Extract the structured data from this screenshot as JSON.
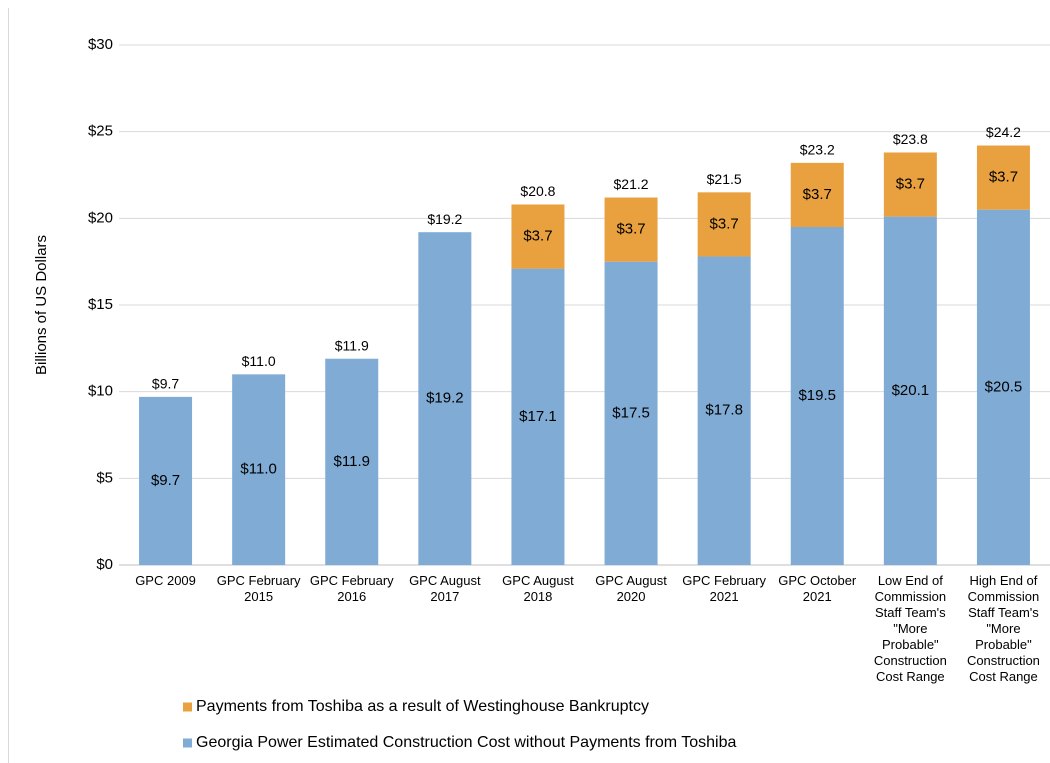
{
  "chart_data": {
    "type": "stacked_bar",
    "y_label": "Billions of US Dollars",
    "categories": [
      "GPC 2009",
      "GPC February 2015",
      "GPC February 2016",
      "GPC August 2017",
      "GPC August 2018",
      "GPC August 2020",
      "GPC February 2021",
      "GPC October 2021",
      "Low End of Commission Staff Team's \"More Probable\" Construction Cost Range",
      "High End of Commission Staff Team's \"More Probable\" Construction Cost Range"
    ],
    "series": [
      {
        "name": "Georgia Power Estimated Construction Cost without Payments from Toshiba",
        "color": "#7fabd5",
        "values": [
          9.7,
          11.0,
          11.9,
          19.2,
          17.1,
          17.5,
          17.8,
          19.5,
          20.1,
          20.5
        ],
        "value_labels": [
          "$9.7",
          "$11.0",
          "$11.9",
          "$19.2",
          "$17.1",
          "$17.5",
          "$17.8",
          "$19.5",
          "$20.1",
          "$20.5"
        ]
      },
      {
        "name": "Payments from Toshiba as a result of Westinghouse Bankruptcy",
        "color": "#e9a140",
        "values": [
          null,
          null,
          null,
          null,
          3.7,
          3.7,
          3.7,
          3.7,
          3.7,
          3.7
        ],
        "value_labels": [
          null,
          null,
          null,
          null,
          "$3.7",
          "$3.7",
          "$3.7",
          "$3.7",
          "$3.7",
          "$3.7"
        ]
      }
    ],
    "total_labels": [
      "$9.7",
      "$11.0",
      "$11.9",
      "$19.2",
      "$20.8",
      "$21.2",
      "$21.5",
      "$23.2",
      "$23.8",
      "$24.2"
    ],
    "ylim": [
      0,
      30
    ],
    "yticks": [
      {
        "value": 0,
        "label": "$0"
      },
      {
        "value": 5,
        "label": "$5"
      },
      {
        "value": 10,
        "label": "$10"
      },
      {
        "value": 15,
        "label": "$15"
      },
      {
        "value": 20,
        "label": "$20"
      },
      {
        "value": 25,
        "label": "$25"
      },
      {
        "value": 30,
        "label": "$30"
      }
    ],
    "grid": true,
    "legend": "bottom"
  }
}
